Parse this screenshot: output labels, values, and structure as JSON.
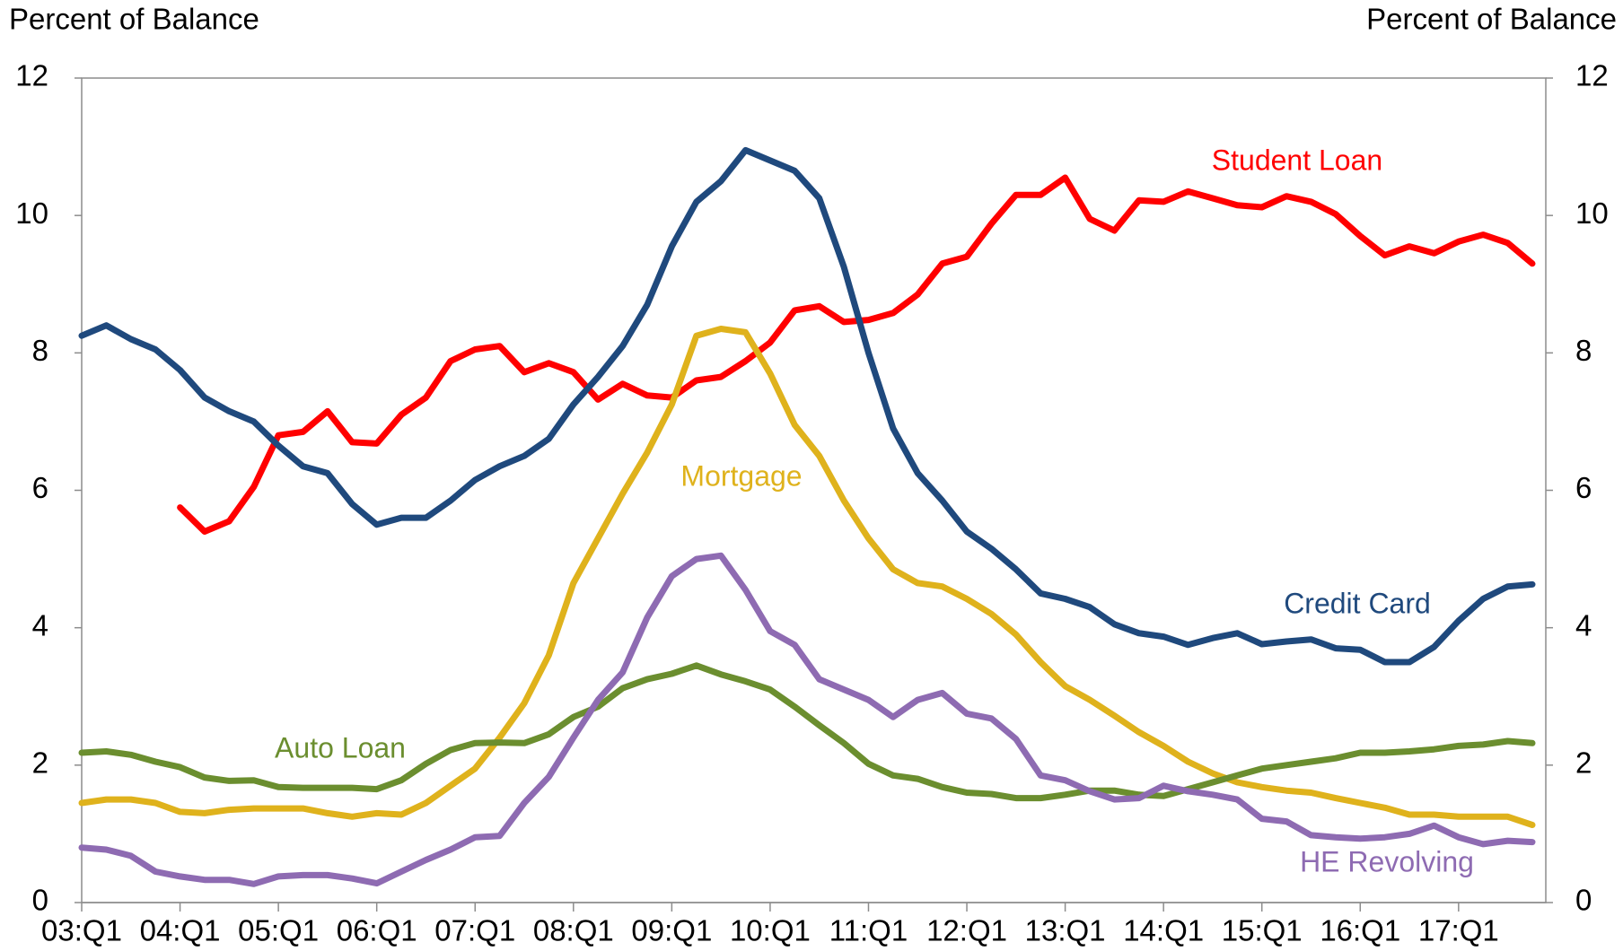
{
  "chart_data": {
    "type": "line",
    "y_label": "Percent of Balance",
    "y2_label": "Percent of Balance",
    "categories": [
      "03:Q1",
      null,
      null,
      null,
      "04:Q1",
      null,
      null,
      null,
      "05:Q1",
      null,
      null,
      null,
      "06:Q1",
      null,
      null,
      null,
      "07:Q1",
      null,
      null,
      null,
      "08:Q1",
      null,
      null,
      null,
      "09:Q1",
      null,
      null,
      null,
      "10:Q1",
      null,
      null,
      null,
      "11:Q1",
      null,
      null,
      null,
      "12:Q1",
      null,
      null,
      null,
      "13:Q1",
      null,
      null,
      null,
      "14:Q1",
      null,
      null,
      null,
      "15:Q1",
      null,
      null,
      null,
      "16:Q1",
      null,
      null,
      null,
      "17:Q1",
      null,
      null,
      null
    ],
    "ylim": [
      0,
      12
    ],
    "yticks": [
      0,
      2,
      4,
      6,
      8,
      10,
      12
    ],
    "y2lim": [
      0,
      12
    ],
    "y2ticks": [
      0,
      2,
      4,
      6,
      8,
      10,
      12
    ],
    "grid": false,
    "series": [
      {
        "name": "Student Loan",
        "color": "#ff0000",
        "values": [
          null,
          null,
          null,
          null,
          5.75,
          5.4,
          5.55,
          6.05,
          6.8,
          6.85,
          7.15,
          6.7,
          6.68,
          7.1,
          7.35,
          7.88,
          8.05,
          8.1,
          7.72,
          7.85,
          7.72,
          7.32,
          7.55,
          7.38,
          7.35,
          7.6,
          7.65,
          7.88,
          8.15,
          8.62,
          8.68,
          8.45,
          8.48,
          8.58,
          8.85,
          9.3,
          9.4,
          9.88,
          10.3,
          10.3,
          10.55,
          9.95,
          9.78,
          10.22,
          10.2,
          10.35,
          10.25,
          10.15,
          10.12,
          10.28,
          10.2,
          10.02,
          9.7,
          9.42,
          9.55,
          9.45,
          9.62,
          9.72,
          9.6,
          9.3
        ]
      },
      {
        "name": "Credit Card",
        "color": "#1f497d",
        "values": [
          8.25,
          8.4,
          8.2,
          8.05,
          7.75,
          7.35,
          7.15,
          7.0,
          6.65,
          6.35,
          6.25,
          5.8,
          5.5,
          5.6,
          5.6,
          5.85,
          6.15,
          6.35,
          6.5,
          6.75,
          7.25,
          7.65,
          8.1,
          8.7,
          9.55,
          10.2,
          10.5,
          10.95,
          10.8,
          10.65,
          10.25,
          9.25,
          8.0,
          6.9,
          6.25,
          5.85,
          5.4,
          5.15,
          4.85,
          4.5,
          4.42,
          4.3,
          4.05,
          3.92,
          3.87,
          3.75,
          3.85,
          3.92,
          3.76,
          3.8,
          3.83,
          3.7,
          3.68,
          3.5,
          3.5,
          3.72,
          4.1,
          4.42,
          4.6,
          4.63
        ]
      },
      {
        "name": "Mortgage",
        "color": "#dfb21c",
        "values": [
          1.45,
          1.5,
          1.5,
          1.45,
          1.32,
          1.3,
          1.35,
          1.37,
          1.37,
          1.37,
          1.3,
          1.25,
          1.3,
          1.28,
          1.45,
          1.7,
          1.95,
          2.4,
          2.9,
          3.6,
          4.65,
          5.3,
          5.95,
          6.55,
          7.25,
          8.25,
          8.35,
          8.3,
          7.7,
          6.95,
          6.5,
          5.85,
          5.3,
          4.85,
          4.65,
          4.6,
          4.42,
          4.2,
          3.9,
          3.5,
          3.15,
          2.95,
          2.72,
          2.48,
          2.28,
          2.05,
          1.88,
          1.75,
          1.68,
          1.63,
          1.6,
          1.52,
          1.45,
          1.38,
          1.28,
          1.28,
          1.25,
          1.25,
          1.25,
          1.13
        ]
      },
      {
        "name": "Auto Loan",
        "color": "#6b8e2f",
        "values": [
          2.18,
          2.2,
          2.15,
          2.05,
          1.97,
          1.82,
          1.77,
          1.78,
          1.68,
          1.67,
          1.67,
          1.67,
          1.65,
          1.78,
          2.02,
          2.22,
          2.32,
          2.33,
          2.32,
          2.45,
          2.7,
          2.85,
          3.12,
          3.25,
          3.33,
          3.45,
          3.32,
          3.22,
          3.1,
          2.85,
          2.58,
          2.32,
          2.02,
          1.85,
          1.8,
          1.68,
          1.6,
          1.58,
          1.52,
          1.52,
          1.57,
          1.63,
          1.63,
          1.57,
          1.55,
          1.65,
          1.75,
          1.85,
          1.95,
          2.0,
          2.05,
          2.1,
          2.18,
          2.18,
          2.2,
          2.23,
          2.28,
          2.3,
          2.35,
          2.32
        ]
      },
      {
        "name": "HE Revolving",
        "color": "#8e6bb2",
        "values": [
          0.8,
          0.77,
          0.68,
          0.45,
          0.38,
          0.33,
          0.33,
          0.27,
          0.38,
          0.4,
          0.4,
          0.35,
          0.28,
          0.45,
          0.62,
          0.77,
          0.95,
          0.97,
          1.45,
          1.83,
          2.4,
          2.95,
          3.35,
          4.15,
          4.75,
          5.0,
          5.05,
          4.55,
          3.95,
          3.75,
          3.25,
          3.1,
          2.95,
          2.7,
          2.95,
          3.05,
          2.75,
          2.68,
          2.38,
          1.85,
          1.78,
          1.62,
          1.5,
          1.52,
          1.7,
          1.62,
          1.57,
          1.5,
          1.22,
          1.18,
          0.98,
          0.95,
          0.93,
          0.95,
          1.0,
          1.12,
          0.95,
          0.85,
          0.9,
          0.88
        ]
      }
    ]
  }
}
